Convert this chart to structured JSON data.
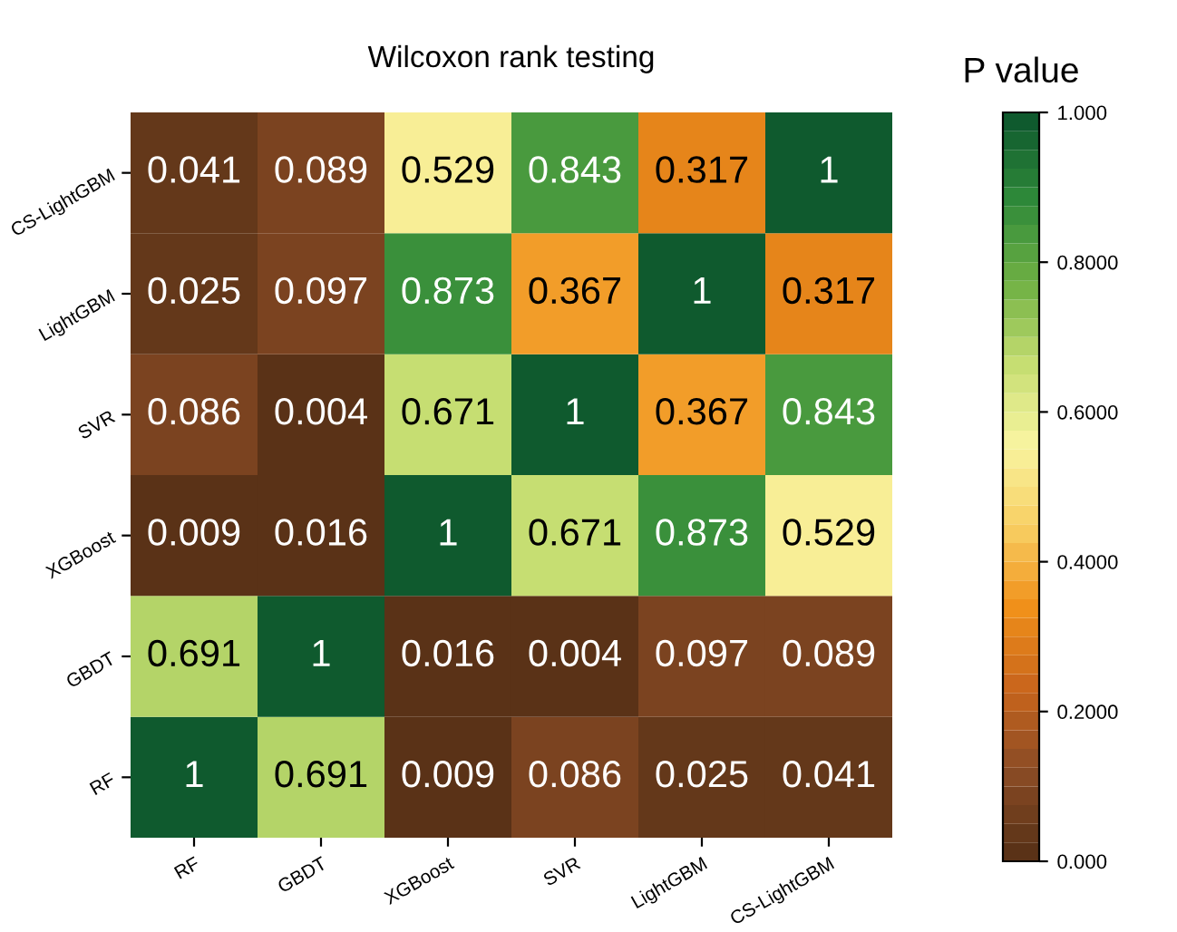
{
  "chart_data": {
    "type": "heatmap",
    "title": "Wilcoxon rank testing",
    "clabel": "P value",
    "categories": [
      "RF",
      "GBDT",
      "XGBoost",
      "SVR",
      "LightGBM",
      "CS-LightGBM"
    ],
    "y_categories": [
      "CS-LightGBM",
      "LightGBM",
      "SVR",
      "XGBoost",
      "GBDT",
      "RF"
    ],
    "cells": [
      [
        0.041,
        0.089,
        0.529,
        0.843,
        0.317,
        1
      ],
      [
        0.025,
        0.097,
        0.873,
        0.367,
        1,
        0.317
      ],
      [
        0.086,
        0.004,
        0.671,
        1,
        0.367,
        0.843
      ],
      [
        0.009,
        0.016,
        1,
        0.671,
        0.873,
        0.529
      ],
      [
        0.691,
        1,
        0.016,
        0.004,
        0.097,
        0.089
      ],
      [
        1,
        0.691,
        0.009,
        0.086,
        0.025,
        0.041
      ]
    ],
    "clim": [
      0,
      1
    ],
    "cticks": [
      {
        "value": 0,
        "label": "0.000"
      },
      {
        "value": 0.2,
        "label": "0.2000"
      },
      {
        "value": 0.4,
        "label": "0.4000"
      },
      {
        "value": 0.6,
        "label": "0.6000"
      },
      {
        "value": 0.8,
        "label": "0.8000"
      },
      {
        "value": 1,
        "label": "1.000"
      }
    ],
    "data_labels": true
  }
}
